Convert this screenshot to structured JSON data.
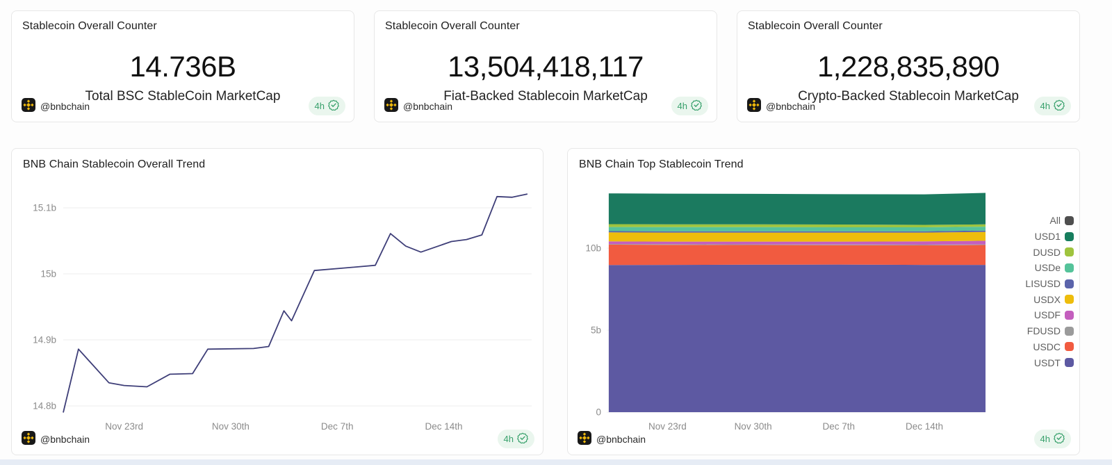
{
  "footer": {
    "author": "@bnbchain",
    "refresh": "4h"
  },
  "colors": {
    "accent_gold": "#f0b90b",
    "badge_green": "#37a06b",
    "badge_bg": "#eaf6ee",
    "grid": "#ededed",
    "axis_text": "#8b8b8b"
  },
  "counters": [
    {
      "title": "Stablecoin Overall Counter",
      "value": "14.736B",
      "label": "Total BSC StableCoin MarketCap"
    },
    {
      "title": "Stablecoin Overall Counter",
      "value": "13,504,418,117",
      "label": "Fiat-Backed Stablecoin MarketCap"
    },
    {
      "title": "Stablecoin Overall Counter",
      "value": "1,228,835,890",
      "label": "Crypto-Backed Stablecoin MarketCap"
    }
  ],
  "chart_data": [
    {
      "type": "line",
      "title": "BNB Chain Stablecoin Overall Trend",
      "unit": "billions USD",
      "line_color": "#3e3e78",
      "grid_on": true,
      "ylim": [
        14.75,
        15.16
      ],
      "yticks": [
        {
          "label": "15.1b",
          "value": 15.1
        },
        {
          "label": "15b",
          "value": 15.0
        },
        {
          "label": "14.9b",
          "value": 14.9
        },
        {
          "label": "14.8b",
          "value": 14.8
        }
      ],
      "xticks": [
        {
          "label": "Nov 23rd",
          "day": 4
        },
        {
          "label": "Nov 30th",
          "day": 11
        },
        {
          "label": "Dec 7th",
          "day": 18
        },
        {
          "label": "Dec 14th",
          "day": 25
        }
      ],
      "points": [
        {
          "day": 0,
          "value": 14.79
        },
        {
          "day": 1,
          "value": 14.886
        },
        {
          "day": 3,
          "value": 14.835
        },
        {
          "day": 4,
          "value": 14.831
        },
        {
          "day": 5.5,
          "value": 14.829
        },
        {
          "day": 7,
          "value": 14.848
        },
        {
          "day": 8.5,
          "value": 14.849
        },
        {
          "day": 9.5,
          "value": 14.886
        },
        {
          "day": 12.5,
          "value": 14.887
        },
        {
          "day": 13.5,
          "value": 14.89
        },
        {
          "day": 14.5,
          "value": 14.944
        },
        {
          "day": 15,
          "value": 14.929
        },
        {
          "day": 16.5,
          "value": 15.005
        },
        {
          "day": 18.5,
          "value": 15.009
        },
        {
          "day": 20.5,
          "value": 15.013
        },
        {
          "day": 21.5,
          "value": 15.061
        },
        {
          "day": 22.5,
          "value": 15.042
        },
        {
          "day": 23.5,
          "value": 15.033
        },
        {
          "day": 25.5,
          "value": 15.049
        },
        {
          "day": 26.5,
          "value": 15.052
        },
        {
          "day": 27.5,
          "value": 15.059
        },
        {
          "day": 28.5,
          "value": 15.117
        },
        {
          "day": 29.5,
          "value": 15.116
        },
        {
          "day": 30.5,
          "value": 15.121
        }
      ]
    },
    {
      "type": "area",
      "title": "BNB Chain Top Stablecoin Trend",
      "unit": "billions USD",
      "grid_on": true,
      "ylim": [
        0,
        13.8
      ],
      "yticks": [
        {
          "label": "10b",
          "value": 10
        },
        {
          "label": "5b",
          "value": 5
        },
        {
          "label": "0",
          "value": 0
        }
      ],
      "xticks": [
        {
          "label": "Nov 23rd",
          "day": 4
        },
        {
          "label": "Nov 30th",
          "day": 11
        },
        {
          "label": "Dec 7th",
          "day": 18
        },
        {
          "label": "Dec 14th",
          "day": 25
        }
      ],
      "sample_days": [
        -0.8,
        4,
        11,
        18,
        25,
        30
      ],
      "series": [
        {
          "name": "USDT",
          "color": "#5d59a2",
          "values": [
            8.97,
            8.98,
            8.99,
            9.0,
            8.98,
            8.98
          ]
        },
        {
          "name": "USDC",
          "color": "#f15b40",
          "values": [
            1.24,
            1.22,
            1.2,
            1.18,
            1.19,
            1.21
          ]
        },
        {
          "name": "FDUSD",
          "color": "#9b9b9b",
          "values": [
            0.04,
            0.04,
            0.04,
            0.04,
            0.04,
            0.04
          ]
        },
        {
          "name": "USDF",
          "color": "#c45fbe",
          "values": [
            0.16,
            0.16,
            0.17,
            0.18,
            0.2,
            0.22
          ]
        },
        {
          "name": "USDX",
          "color": "#eebd0c",
          "values": [
            0.55,
            0.55,
            0.55,
            0.55,
            0.54,
            0.54
          ]
        },
        {
          "name": "LISUSD",
          "color": "#5b64ab",
          "values": [
            0.08,
            0.08,
            0.08,
            0.08,
            0.08,
            0.08
          ]
        },
        {
          "name": "USDe",
          "color": "#55c39a",
          "values": [
            0.25,
            0.25,
            0.25,
            0.24,
            0.24,
            0.24
          ]
        },
        {
          "name": "DUSD",
          "color": "#9fc43e",
          "values": [
            0.17,
            0.17,
            0.17,
            0.17,
            0.15,
            0.14
          ]
        },
        {
          "name": "USD1",
          "color": "#1b7a5f",
          "values": [
            1.88,
            1.87,
            1.86,
            1.85,
            1.86,
            1.92
          ]
        }
      ],
      "legend": [
        {
          "label": "All",
          "color": "#4f4f4f"
        },
        {
          "label": "USD1",
          "color": "#177e5e"
        },
        {
          "label": "DUSD",
          "color": "#9fc43e"
        },
        {
          "label": "USDe",
          "color": "#55c39a"
        },
        {
          "label": "LISUSD",
          "color": "#5b64ab"
        },
        {
          "label": "USDX",
          "color": "#eebd0c"
        },
        {
          "label": "USDF",
          "color": "#c45fbe"
        },
        {
          "label": "FDUSD",
          "color": "#9b9b9b"
        },
        {
          "label": "USDC",
          "color": "#f15b40"
        },
        {
          "label": "USDT",
          "color": "#5d59a2"
        }
      ],
      "legend_position": "right"
    }
  ]
}
